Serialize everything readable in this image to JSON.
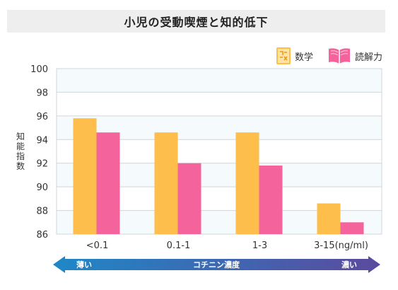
{
  "page": {
    "title": "小児の受動喫煙と知的低下"
  },
  "legend": [
    {
      "label": "数学",
      "icon": "math-icon",
      "color": "#FDBE4C"
    },
    {
      "label": "読解力",
      "icon": "book-icon",
      "color": "#F5639D"
    }
  ],
  "arrow": {
    "left_label": "薄い",
    "center_label": "コチニン濃度",
    "right_label": "濃い",
    "color_start": "#1E88C7",
    "color_end": "#5B4A9E"
  },
  "chart_data": {
    "type": "bar",
    "title": "小児の受動喫煙と知的低下",
    "ylabel": "知能指数",
    "xlabel": "コチニン濃度",
    "categories": [
      "<0.1",
      "0.1-1",
      "1-3",
      "3-15(ng/ml)"
    ],
    "series": [
      {
        "name": "数学",
        "color": "#FDBE4C",
        "values": [
          95.8,
          94.6,
          94.6,
          88.6
        ]
      },
      {
        "name": "読解力",
        "color": "#F5639D",
        "values": [
          94.6,
          92.0,
          91.8,
          87.0
        ]
      }
    ],
    "ylim": [
      86,
      100
    ],
    "yticks": [
      86,
      88,
      90,
      92,
      94,
      96,
      98,
      100
    ],
    "grid": true
  }
}
